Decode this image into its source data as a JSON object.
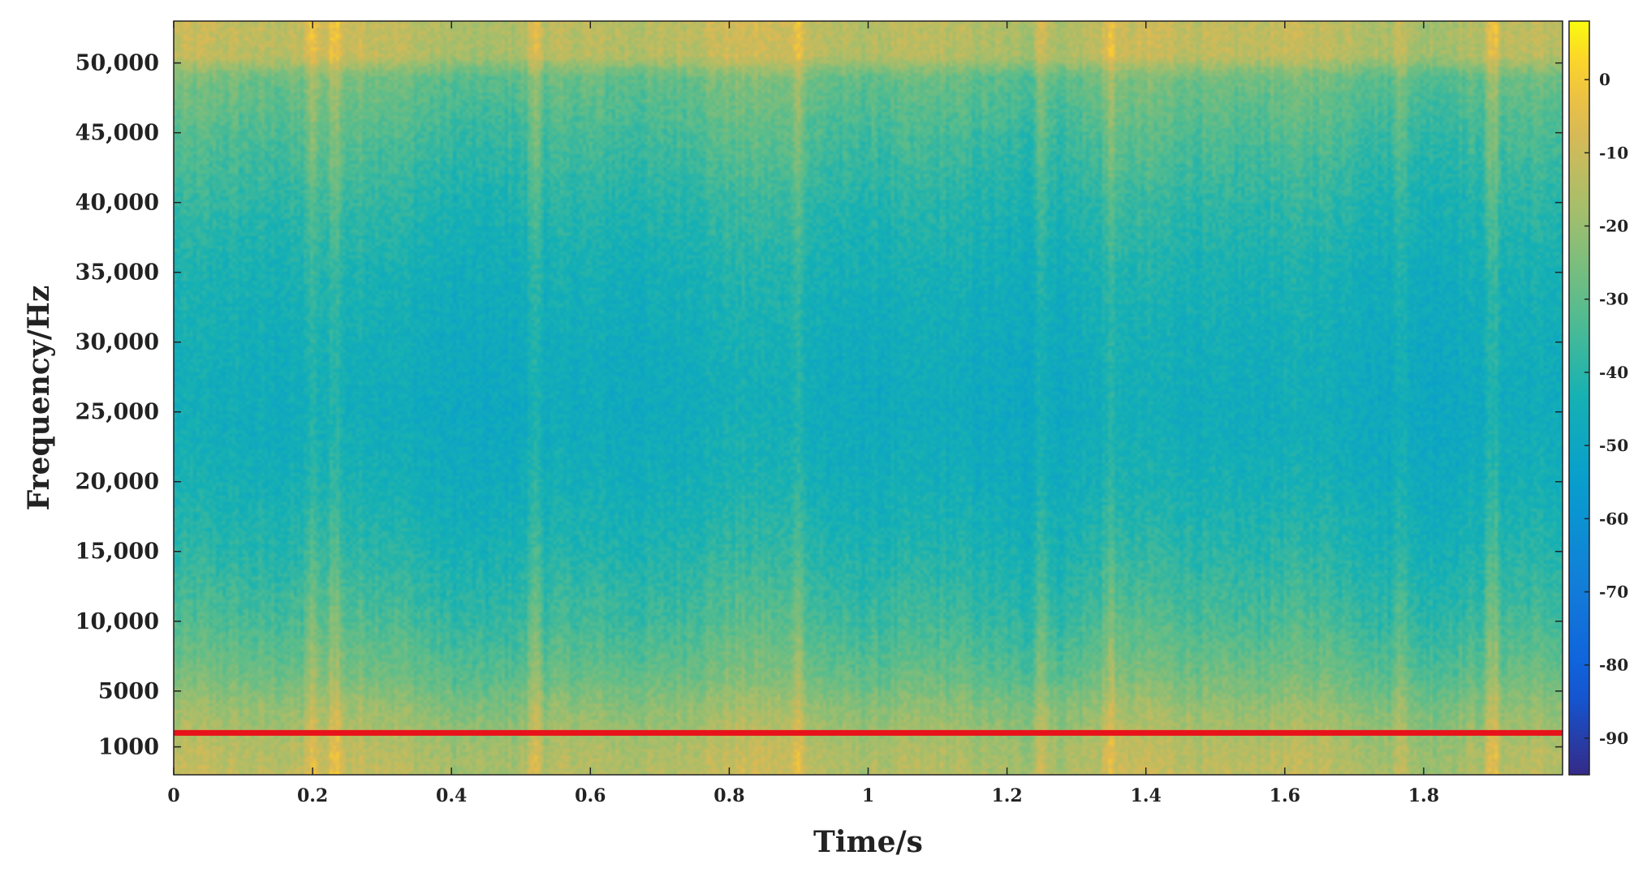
{
  "chart_data": {
    "type": "heatmap",
    "title": "",
    "xlabel": "Time/s",
    "ylabel": "Frequency/Hz",
    "xlim": [
      0,
      2.0
    ],
    "ylim": [
      -1000,
      53000
    ],
    "x_ticks": [
      0,
      0.2,
      0.4,
      0.6,
      0.8,
      1,
      1.2,
      1.4,
      1.6,
      1.8
    ],
    "x_tick_labels": [
      "0",
      "0.2",
      "0.4",
      "0.6",
      "0.8",
      "1",
      "1.2",
      "1.4",
      "1.6",
      "1.8"
    ],
    "y_ticks": [
      1000,
      5000,
      10000,
      15000,
      20000,
      25000,
      30000,
      35000,
      40000,
      45000,
      50000
    ],
    "y_tick_labels": [
      "1000",
      "5000",
      "10,000",
      "15,000",
      "20,000",
      "25,000",
      "30,000",
      "35,000",
      "40,000",
      "45,000",
      "50,000"
    ],
    "colorbar": {
      "range": [
        -95,
        8
      ],
      "ticks": [
        0,
        -10,
        -20,
        -30,
        -40,
        -50,
        -60,
        -70,
        -80,
        -90
      ],
      "tick_labels": [
        "0",
        "-10",
        "-20",
        "-30",
        "-40",
        "-50",
        "-60",
        "-70",
        "-80",
        "-90"
      ],
      "colormap": "parula"
    },
    "value_profile": {
      "frequency_hz": [
        -1000,
        1000,
        2000,
        4000,
        6000,
        10000,
        15000,
        20000,
        25000,
        30000,
        35000,
        40000,
        45000,
        49000,
        50500,
        53000
      ],
      "level_db": [
        -14,
        -16,
        -18,
        -22,
        -28,
        -35,
        -41,
        -45,
        -47,
        -46,
        -44,
        -40,
        -34,
        -28,
        -14,
        -13
      ]
    },
    "vertical_stripes_s": [
      0.2,
      0.23,
      0.52,
      0.9,
      1.25,
      1.35,
      1.77,
      1.9
    ],
    "annotations": [
      {
        "type": "horizontal-line",
        "y": 2000,
        "color": "#e8121a"
      }
    ],
    "grid": false,
    "legend": "none"
  }
}
